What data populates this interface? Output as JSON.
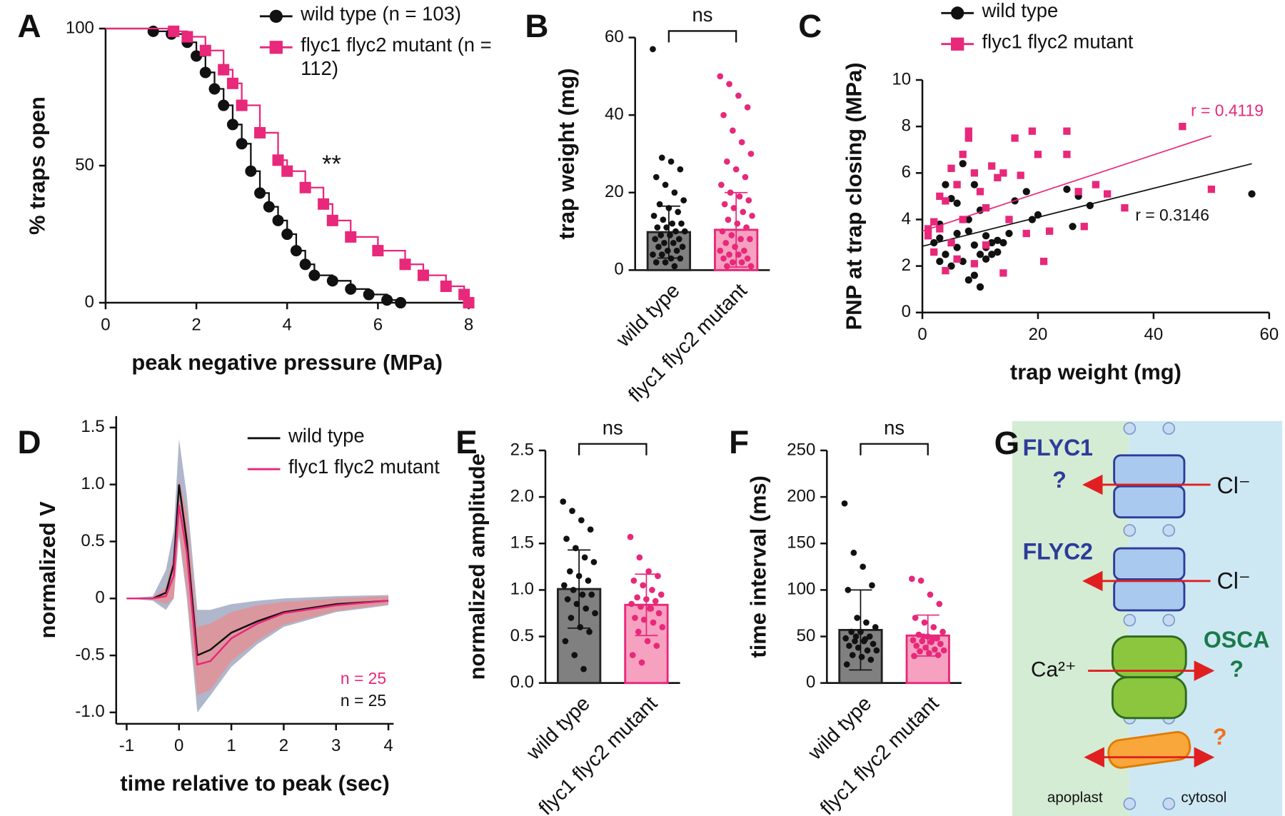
{
  "chart_data": [
    {
      "type": "step",
      "panel": "A",
      "xlabel": "peak negative pressure (MPa)",
      "ylabel": "% traps open",
      "xlim": [
        0,
        8
      ],
      "xticks": [
        0,
        2,
        4,
        6,
        8
      ],
      "ylim": [
        0,
        100
      ],
      "yticks": [
        0,
        50,
        100
      ],
      "annotation": "**",
      "series": [
        {
          "name": "wild type (n = 103)",
          "color": "#111111",
          "marker": "circle",
          "x": [
            0,
            1.05,
            1.45,
            1.8,
            2.0,
            2.2,
            2.4,
            2.6,
            2.8,
            3.0,
            3.2,
            3.4,
            3.6,
            3.8,
            4.0,
            4.2,
            4.4,
            4.6,
            5.0,
            5.4,
            5.8,
            6.2,
            6.5
          ],
          "values": [
            100,
            99,
            98,
            95,
            90,
            84,
            78,
            72,
            65,
            58,
            48,
            40,
            35,
            30,
            25,
            19,
            14,
            10,
            8,
            5,
            3,
            1,
            0
          ]
        },
        {
          "name": "flyc1 flyc2 mutant (n = 112)",
          "color": "#e8287a",
          "marker": "square",
          "x": [
            0,
            1.5,
            1.8,
            2.2,
            2.6,
            2.8,
            3.0,
            3.4,
            3.8,
            4.0,
            4.4,
            4.8,
            5.0,
            5.4,
            6.0,
            6.6,
            7.0,
            7.5,
            7.9,
            8.0
          ],
          "values": [
            100,
            99,
            97,
            92,
            85,
            80,
            72,
            62,
            52,
            48,
            42,
            36,
            30,
            24,
            19,
            14,
            10,
            6,
            3,
            0
          ]
        }
      ]
    },
    {
      "type": "stripbar",
      "panel": "B",
      "ylabel": "trap weight (mg)",
      "annotation": "ns",
      "categories": [
        "wild type",
        "flyc1 flyc2 mutant"
      ],
      "ylim": [
        0,
        60
      ],
      "yticks": [
        0,
        20,
        40,
        60
      ],
      "values": [
        9.8,
        10.4
      ],
      "errors": [
        6.7,
        9.6
      ],
      "colors": [
        "#808080",
        "#f7a1c0"
      ],
      "edge_colors": [
        "#222222",
        "#e8287a"
      ],
      "point_colors": [
        "#111111",
        "#e8287a"
      ],
      "points": [
        [
          57,
          29,
          28,
          26,
          24,
          22,
          20,
          18,
          17,
          16,
          15,
          14,
          13,
          12,
          12,
          11,
          11,
          10,
          10,
          9,
          9,
          8,
          8,
          7,
          7,
          6,
          6,
          5,
          5,
          4,
          4,
          3,
          3,
          2,
          2,
          1
        ],
        [
          50,
          48,
          45,
          42,
          40,
          36,
          33,
          30,
          28,
          26,
          24,
          22,
          20,
          19,
          18,
          17,
          16,
          15,
          14,
          13,
          12,
          11,
          10,
          9,
          8,
          8,
          7,
          6,
          5,
          5,
          4,
          4,
          3,
          3,
          2,
          2,
          1,
          1
        ]
      ]
    },
    {
      "type": "scatter",
      "panel": "C",
      "xlabel": "trap weight (mg)",
      "ylabel": "PNP at trap closing (MPa)",
      "xlim": [
        0,
        60
      ],
      "xticks": [
        0,
        20,
        40,
        60
      ],
      "ylim": [
        0,
        10
      ],
      "yticks": [
        0,
        2,
        4,
        6,
        8,
        10
      ],
      "series": [
        {
          "name": "wild type",
          "color": "#111111",
          "marker": "circle",
          "r_label": "r = 0.3146",
          "x": [
            57,
            29,
            27,
            25,
            26,
            20,
            19,
            18,
            16,
            15,
            14,
            13,
            12,
            12,
            11,
            11,
            10,
            10,
            9,
            9,
            8,
            8,
            8,
            7,
            7,
            6,
            6,
            5,
            5,
            4,
            4,
            3,
            3,
            2,
            2,
            9,
            10,
            11,
            13,
            6,
            5,
            3
          ],
          "values": [
            5.1,
            4.6,
            5.0,
            5.3,
            3.7,
            4.2,
            4.0,
            5.2,
            4.8,
            3.4,
            3.0,
            3.1,
            3.0,
            2.5,
            3.3,
            2.8,
            2.5,
            1.1,
            1.6,
            2.9,
            1.4,
            3.5,
            4.0,
            6.4,
            2.2,
            3.4,
            4.7,
            2.0,
            3.0,
            2.5,
            5.5,
            2.2,
            3.8,
            2.6,
            3.0,
            5.5,
            4.4,
            2.3,
            2.6,
            2.8,
            4.9,
            3.2
          ],
          "fit_x": [
            0,
            57
          ],
          "fit_y": [
            2.85,
            6.4
          ]
        },
        {
          "name": "flyc1 flyc2 mutant",
          "color": "#e8287a",
          "marker": "square",
          "r_label": "r = 0.4119",
          "x": [
            45,
            50,
            35,
            32,
            30,
            27,
            25,
            25,
            22,
            20,
            19,
            17,
            16,
            15,
            14,
            13,
            12,
            11,
            10,
            9,
            8,
            8,
            7,
            7,
            6,
            6,
            5,
            5,
            4,
            4,
            3,
            3,
            2,
            2,
            1,
            1,
            11,
            14,
            9,
            18,
            28,
            21
          ],
          "values": [
            8.0,
            5.3,
            4.5,
            5.1,
            5.5,
            5.2,
            7.8,
            6.8,
            3.5,
            6.8,
            7.8,
            5.9,
            7.5,
            4.0,
            6.0,
            5.8,
            6.3,
            4.5,
            5.2,
            6.0,
            7.8,
            7.5,
            6.8,
            4.0,
            5.5,
            2.3,
            3.0,
            6.2,
            4.8,
            1.8,
            3.6,
            5.0,
            2.6,
            3.9,
            3.3,
            3.6,
            2.9,
            1.7,
            2.1,
            3.4,
            3.7,
            2.2
          ],
          "fit_x": [
            0,
            50
          ],
          "fit_y": [
            3.5,
            7.6
          ]
        }
      ]
    },
    {
      "type": "band",
      "panel": "D",
      "xlabel": "time relative to peak (sec)",
      "ylabel": "normalized V",
      "xlim": [
        -1.2,
        4.1
      ],
      "xticks": [
        -1,
        0,
        1,
        2,
        3,
        4
      ],
      "ylim": [
        -1.1,
        1.6
      ],
      "yticks": [
        {
          "value": -1,
          "label": "-1.0"
        },
        -0.5,
        0,
        0.5,
        {
          "value": 1,
          "label": "1.0"
        },
        1.5
      ],
      "x": [
        -1,
        -0.5,
        -0.25,
        -0.1,
        0,
        0.15,
        0.35,
        0.6,
        1,
        1.5,
        2,
        3,
        4
      ],
      "series": [
        {
          "name": "wild type",
          "color": "#111111",
          "band_color": "#8e97b5",
          "n_label": "n = 25",
          "values": [
            0,
            0,
            0.05,
            0.3,
            1.0,
            0.5,
            -0.5,
            -0.45,
            -0.3,
            -0.2,
            -0.12,
            -0.05,
            -0.02
          ],
          "lower": [
            0,
            -0.02,
            -0.1,
            0.0,
            0.55,
            0.0,
            -1.0,
            -0.85,
            -0.6,
            -0.4,
            -0.25,
            -0.12,
            -0.06
          ],
          "upper": [
            0,
            0.02,
            0.25,
            0.6,
            1.4,
            0.9,
            -0.1,
            -0.1,
            -0.05,
            -0.02,
            0,
            0.02,
            0.03
          ]
        },
        {
          "name": "flyc1 flyc2 mutant",
          "color": "#e8287a",
          "band_color": "#ee8a8a",
          "n_label": "n = 25",
          "values": [
            0,
            0,
            0.02,
            0.2,
            0.82,
            0.4,
            -0.58,
            -0.55,
            -0.35,
            -0.22,
            -0.13,
            -0.06,
            -0.02
          ],
          "lower": [
            0,
            -0.01,
            -0.05,
            0.0,
            0.6,
            0.05,
            -0.85,
            -0.8,
            -0.55,
            -0.37,
            -0.23,
            -0.11,
            -0.05
          ],
          "upper": [
            0,
            0.01,
            0.1,
            0.4,
            1.05,
            0.75,
            -0.25,
            -0.22,
            -0.12,
            -0.06,
            -0.03,
            0,
            0.02
          ]
        }
      ]
    },
    {
      "type": "stripbar",
      "panel": "E",
      "ylabel": "normalized amplitude",
      "annotation": "ns",
      "categories": [
        "wild type",
        "flyc1 flyc2 mutant"
      ],
      "ylim": [
        0,
        2.5
      ],
      "yticks": [
        {
          "value": 0,
          "label": "0.0"
        },
        0.5,
        {
          "value": 1,
          "label": "1.0"
        },
        1.5,
        {
          "value": 2,
          "label": "2.0"
        },
        2.5
      ],
      "values": [
        1.01,
        0.84
      ],
      "errors": [
        0.42,
        0.33
      ],
      "colors": [
        "#808080",
        "#f7a1c0"
      ],
      "edge_colors": [
        "#222222",
        "#e8287a"
      ],
      "point_colors": [
        "#111111",
        "#e8287a"
      ],
      "points": [
        [
          1.95,
          1.85,
          1.75,
          1.65,
          1.55,
          1.45,
          1.35,
          1.3,
          1.2,
          1.15,
          1.1,
          1.05,
          1.0,
          0.95,
          0.95,
          0.9,
          0.85,
          0.8,
          0.75,
          0.7,
          0.6,
          0.55,
          0.45,
          0.3,
          0.15
        ],
        [
          1.57,
          1.35,
          1.2,
          1.15,
          1.1,
          1.05,
          1.0,
          0.95,
          0.92,
          0.9,
          0.88,
          0.85,
          0.82,
          0.8,
          0.75,
          0.7,
          0.68,
          0.65,
          0.6,
          0.55,
          0.45,
          0.4,
          0.3,
          0.22,
          0.8
        ]
      ]
    },
    {
      "type": "stripbar",
      "panel": "F",
      "ylabel": "time interval (ms)",
      "annotation": "ns",
      "categories": [
        "wild type",
        "flyc1 flyc2 mutant"
      ],
      "ylim": [
        0,
        250
      ],
      "yticks": [
        0,
        50,
        100,
        150,
        200,
        250
      ],
      "values": [
        57,
        51
      ],
      "errors": [
        43,
        22
      ],
      "colors": [
        "#808080",
        "#f7a1c0"
      ],
      "edge_colors": [
        "#222222",
        "#e8287a"
      ],
      "point_colors": [
        "#111111",
        "#e8287a"
      ],
      "points": [
        [
          193,
          140,
          125,
          105,
          100,
          70,
          65,
          60,
          55,
          55,
          50,
          48,
          45,
          45,
          42,
          40,
          38,
          35,
          35,
          30,
          28,
          25,
          20,
          50,
          47
        ],
        [
          112,
          110,
          95,
          85,
          70,
          65,
          60,
          55,
          52,
          50,
          48,
          46,
          45,
          44,
          42,
          40,
          38,
          36,
          35,
          34,
          32,
          30,
          29,
          50,
          47
        ]
      ]
    }
  ],
  "diagram": {
    "panel": "G",
    "flyc1": "FLYC1",
    "flyc1_q": "?",
    "cl1": "Cl⁻",
    "flyc2": "FLYC2",
    "cl2": "Cl⁻",
    "osca": "OSCA",
    "osca_q": "?",
    "ca": "Ca²⁺",
    "channel_q": "?",
    "apoplast": "apoplast",
    "cytosol": "cytosol"
  }
}
